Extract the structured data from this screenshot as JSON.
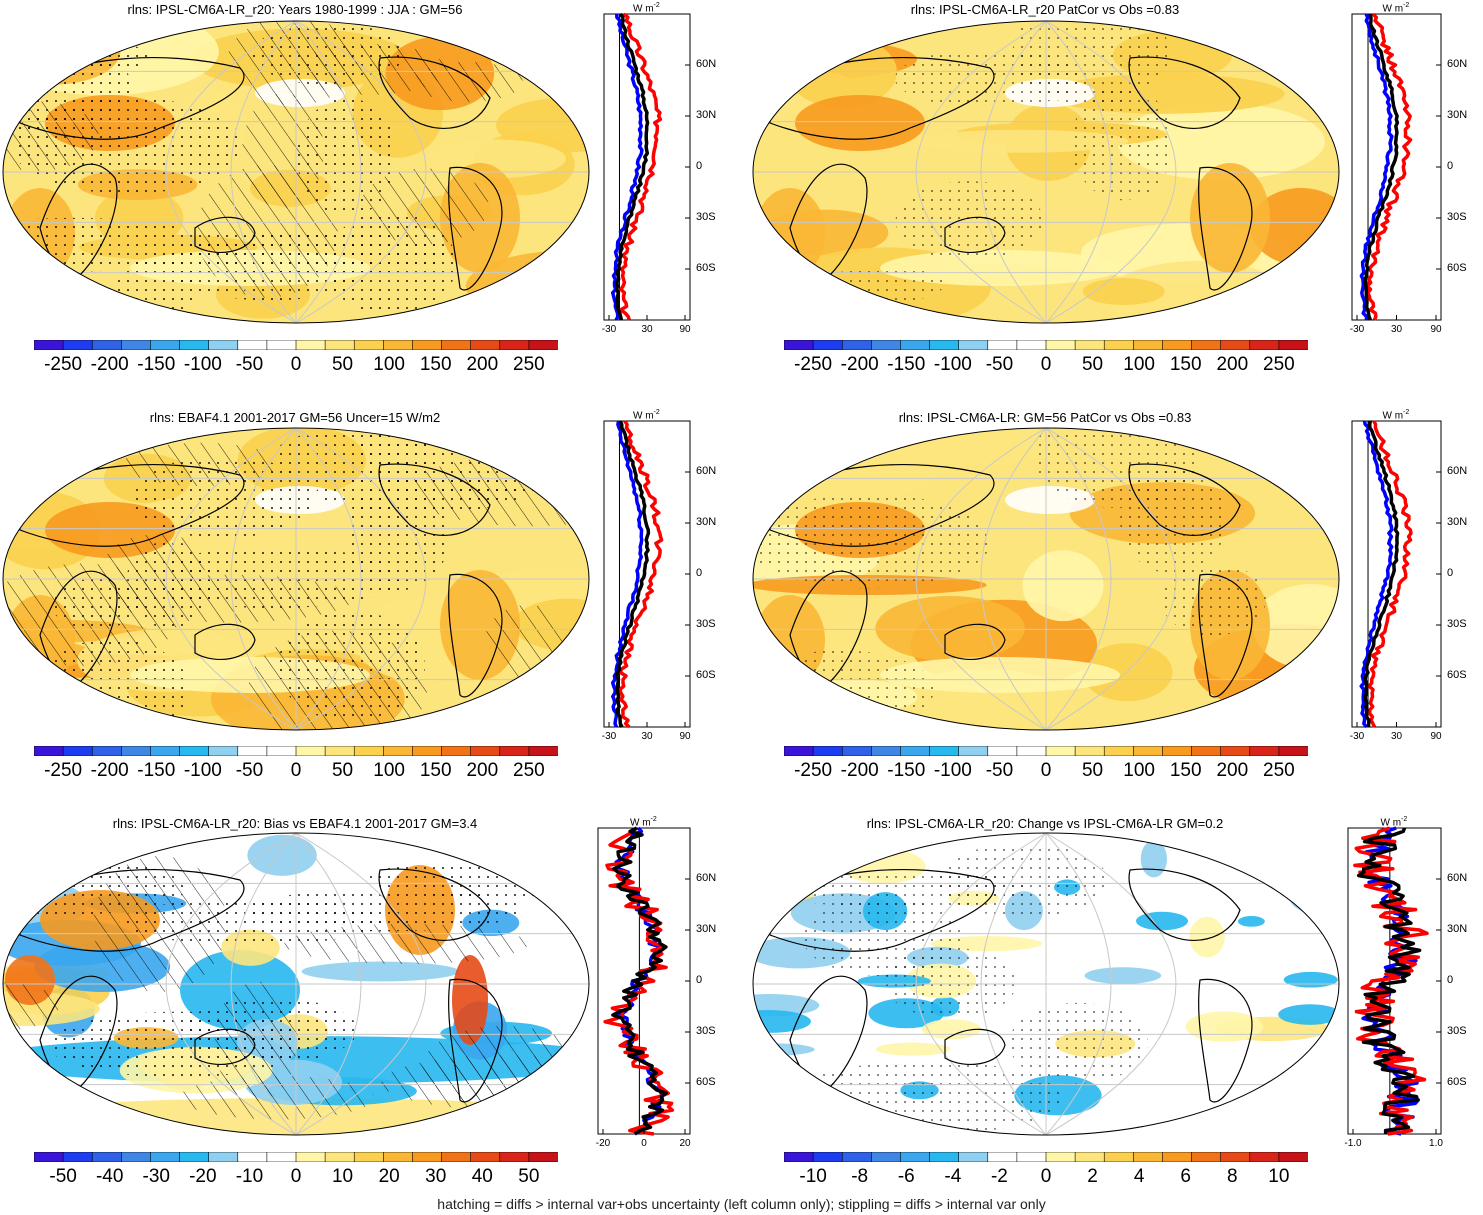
{
  "footer": "hatching = diffs > internal var+obs uncertainty (left column only); stippling = diffs > internal var only",
  "unit_main": "W m",
  "unit_sup": "-2",
  "colors": {
    "scale": [
      "#3a14d8",
      "#1e3df0",
      "#2f62e6",
      "#3f86e6",
      "#3aa6ee",
      "#27b8ee",
      "#8fcff0",
      "#ffffff",
      "#ffffff",
      "#fff6a8",
      "#fde57e",
      "#fbd04e",
      "#f9b735",
      "#f79a1f",
      "#f17318",
      "#e64a17",
      "#d9241a",
      "#c8121a"
    ],
    "model_line": "#000000",
    "obs_line": "#0000ff",
    "diff_line": "#ff0000"
  },
  "panels": [
    {
      "id": "p1",
      "title": "rlns: IPSL-CM6A-LR_r20: Years 1980-1999 : JJA : GM=56",
      "kind": "clim",
      "hatch": true,
      "colorbar_ticks": [
        "-250",
        "-200",
        "-150",
        "-100",
        "-50",
        "0",
        "50",
        "100",
        "150",
        "200",
        "250"
      ],
      "zonal_x_ticks": [
        "-30",
        "30",
        "90"
      ],
      "zonal_lat_ticks": [
        "60N",
        "30N",
        "0",
        "30S",
        "60S"
      ]
    },
    {
      "id": "p2",
      "title": "rlns: IPSL-CM6A-LR_r20 PatCor vs Obs =0.83",
      "kind": "clim",
      "hatch": false,
      "colorbar_ticks": [
        "-250",
        "-200",
        "-150",
        "-100",
        "-50",
        "0",
        "50",
        "100",
        "150",
        "200",
        "250"
      ],
      "zonal_x_ticks": [
        "-30",
        "30",
        "90"
      ],
      "zonal_lat_ticks": [
        "60N",
        "30N",
        "0",
        "30S",
        "60S"
      ]
    },
    {
      "id": "p3",
      "title": "rlns: EBAF4.1 2001-2017 GM=56 Uncer=15 W/m2",
      "kind": "clim",
      "hatch": true,
      "colorbar_ticks": [
        "-250",
        "-200",
        "-150",
        "-100",
        "-50",
        "0",
        "50",
        "100",
        "150",
        "200",
        "250"
      ],
      "zonal_x_ticks": [
        "-30",
        "30",
        "90"
      ],
      "zonal_lat_ticks": [
        "60N",
        "30N",
        "0",
        "30S",
        "60S"
      ]
    },
    {
      "id": "p4",
      "title": "rlns: IPSL-CM6A-LR: GM=56 PatCor vs Obs =0.83",
      "kind": "clim",
      "hatch": false,
      "colorbar_ticks": [
        "-250",
        "-200",
        "-150",
        "-100",
        "-50",
        "0",
        "50",
        "100",
        "150",
        "200",
        "250"
      ],
      "zonal_x_ticks": [
        "-30",
        "30",
        "90"
      ],
      "zonal_lat_ticks": [
        "60N",
        "30N",
        "0",
        "30S",
        "60S"
      ]
    },
    {
      "id": "p5",
      "title": "rlns: IPSL-CM6A-LR_r20: Bias vs EBAF4.1 2001-2017 GM=3.4",
      "kind": "bias",
      "hatch": true,
      "colorbar_ticks": [
        "-50",
        "-40",
        "-30",
        "-20",
        "-10",
        "0",
        "10",
        "20",
        "30",
        "40",
        "50"
      ],
      "zonal_x_ticks": [
        "-20",
        "0",
        "20"
      ],
      "zonal_lat_ticks": [
        "60N",
        "30N",
        "0",
        "30S",
        "60S"
      ]
    },
    {
      "id": "p6",
      "title": "rlns: IPSL-CM6A-LR_r20: Change vs IPSL-CM6A-LR GM=0.2",
      "kind": "change",
      "hatch": false,
      "colorbar_ticks": [
        "-10",
        "-8",
        "-6",
        "-4",
        "-2",
        "0",
        "2",
        "4",
        "6",
        "8",
        "10"
      ],
      "zonal_x_ticks": [
        "-1.0",
        "1.0"
      ],
      "zonal_lat_ticks": [
        "60N",
        "30N",
        "0",
        "30S",
        "60S"
      ]
    }
  ]
}
